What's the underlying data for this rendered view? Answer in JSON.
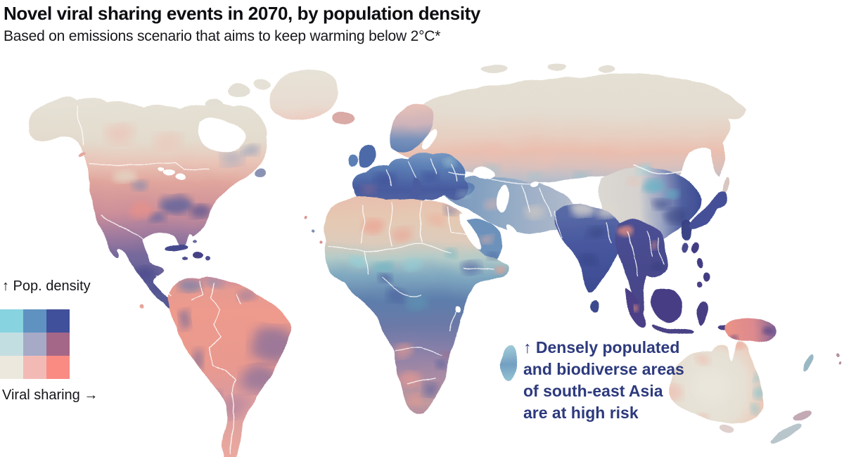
{
  "header": {
    "title": "Novel viral sharing events in 2070, by population density",
    "subtitle": "Based on emissions scenario that aims to keep warming below 2°C*"
  },
  "legend": {
    "y_axis_label": "↑ Pop. density",
    "x_axis_label": "Viral sharing →",
    "grid_rows_top_to_bottom": [
      [
        "#87d3df",
        "#6092c1",
        "#41509b"
      ],
      [
        "#c3dee1",
        "#a6aac7",
        "#a56787"
      ],
      [
        "#ece8dd",
        "#f3bab5",
        "#f98b83"
      ]
    ],
    "rows_meaning": "top row = high population density, bottom row = low",
    "columns_meaning": "left column = low viral sharing, right column = high"
  },
  "annotation": {
    "text": "↑ Densely populated\nand biodiverse areas\nof south-east Asia\nare at high risk",
    "color": "#2d3a7d"
  },
  "map": {
    "ocean_color": "#ffffff",
    "border_color": "#ffffff",
    "style": "watercolor bivariate choropleth, white country borders"
  },
  "chart_data": {
    "type": "heatmap",
    "subtype": "bivariate-choropleth-world-map",
    "x_variable": "viral sharing (low → high)",
    "y_variable": "population density (low ↑ high)",
    "palette_rows_top_to_bottom": [
      [
        "#87d3df",
        "#6092c1",
        "#41509b"
      ],
      [
        "#c3dee1",
        "#a6aac7",
        "#a56787"
      ],
      [
        "#ece8dd",
        "#f3bab5",
        "#f98b83"
      ]
    ],
    "regions": [
      {
        "name": "Canada & Siberia far north",
        "population_density": "low",
        "viral_sharing": "low",
        "color": "beige"
      },
      {
        "name": "Northern tundra band (Canada, Russia)",
        "population_density": "low",
        "viral_sharing": "high",
        "color": "pink"
      },
      {
        "name": "United States (south & east)",
        "population_density": "mixed",
        "viral_sharing": "high",
        "color": "salmon with navy mottling"
      },
      {
        "name": "Mexico, Central America & Caribbean",
        "population_density": "high",
        "viral_sharing": "high",
        "color": "dark purple-navy"
      },
      {
        "name": "Amazon basin",
        "population_density": "low",
        "viral_sharing": "high",
        "color": "salmon"
      },
      {
        "name": "Eastern Brazil",
        "population_density": "high",
        "viral_sharing": "high",
        "color": "blue-purple"
      },
      {
        "name": "Europe",
        "population_density": "high",
        "viral_sharing": "moderate",
        "color": "steel blue / navy"
      },
      {
        "name": "Sahara",
        "population_density": "low",
        "viral_sharing": "high",
        "color": "pink and beige"
      },
      {
        "name": "Sahel & central Africa",
        "population_density": "moderate-high",
        "viral_sharing": "moderate",
        "color": "teal and blue"
      },
      {
        "name": "Southern Africa",
        "population_density": "mixed",
        "viral_sharing": "high",
        "color": "pink/navy mottled"
      },
      {
        "name": "Madagascar",
        "population_density": "moderate",
        "viral_sharing": "low-moderate",
        "color": "cyan"
      },
      {
        "name": "India & Bangladesh",
        "population_density": "very high",
        "viral_sharing": "moderate-high",
        "color": "dark navy"
      },
      {
        "name": "Eastern China & Korea",
        "population_density": "very high",
        "viral_sharing": "moderate-high",
        "color": "dark navy"
      },
      {
        "name": "Tibetan plateau & western China",
        "population_density": "low",
        "viral_sharing": "low",
        "color": "pale beige"
      },
      {
        "name": "South-east Asia & Indonesia",
        "population_density": "very high",
        "viral_sharing": "high",
        "color": "dark purple-navy"
      },
      {
        "name": "New Guinea",
        "population_density": "low",
        "viral_sharing": "high",
        "color": "salmon with purple"
      },
      {
        "name": "Australia interior",
        "population_density": "low",
        "viral_sharing": "low",
        "color": "beige with pink fringe"
      }
    ]
  }
}
